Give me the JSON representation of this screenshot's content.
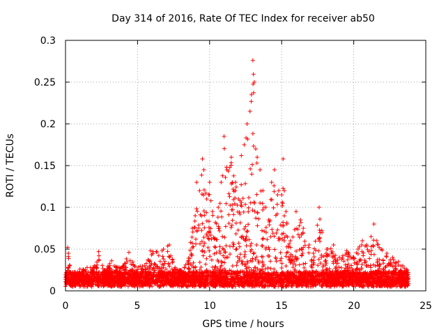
{
  "chart_data": {
    "type": "scatter",
    "title": "Day 314 of 2016, Rate Of TEC Index for receiver ab50",
    "xlabel": "GPS time / hours",
    "ylabel": "ROTI / TECUs",
    "xlim": [
      0,
      25
    ],
    "ylim": [
      0,
      0.3
    ],
    "xticks": [
      0,
      5,
      10,
      15,
      20,
      25
    ],
    "yticks": [
      0,
      0.05,
      0.1,
      0.15,
      0.2,
      0.25,
      0.3
    ],
    "xtick_labels": [
      "0",
      "5",
      "10",
      "15",
      "20",
      "25"
    ],
    "ytick_labels": [
      "0",
      "0.05",
      "0.1",
      "0.15",
      "0.2",
      "0.25",
      "0.3"
    ],
    "grid": true,
    "marker": "+",
    "color": "#ff0000",
    "series": [
      {
        "name": "ROTI",
        "points": [
          [
            0.1,
            0.012
          ],
          [
            0.15,
            0.052
          ],
          [
            0.2,
            0.045
          ],
          [
            0.3,
            0.03
          ],
          [
            0.5,
            0.022
          ],
          [
            1.0,
            0.026
          ],
          [
            1.5,
            0.028
          ],
          [
            2.0,
            0.03
          ],
          [
            2.3,
            0.047
          ],
          [
            2.7,
            0.025
          ],
          [
            3.2,
            0.036
          ],
          [
            3.5,
            0.029
          ],
          [
            4.0,
            0.03
          ],
          [
            4.4,
            0.046
          ],
          [
            4.8,
            0.03
          ],
          [
            5.5,
            0.03
          ],
          [
            5.9,
            0.048
          ],
          [
            6.3,
            0.047
          ],
          [
            6.8,
            0.05
          ],
          [
            7.2,
            0.055
          ],
          [
            7.6,
            0.028
          ],
          [
            8.0,
            0.025
          ],
          [
            8.5,
            0.035
          ],
          [
            8.8,
            0.075
          ],
          [
            9.0,
            0.09
          ],
          [
            9.1,
            0.13
          ],
          [
            9.3,
            0.12
          ],
          [
            9.5,
            0.158
          ],
          [
            9.6,
            0.145
          ],
          [
            9.8,
            0.11
          ],
          [
            10.0,
            0.13
          ],
          [
            10.2,
            0.095
          ],
          [
            10.4,
            0.082
          ],
          [
            10.6,
            0.1
          ],
          [
            10.8,
            0.13
          ],
          [
            11.0,
            0.185
          ],
          [
            11.2,
            0.145
          ],
          [
            11.5,
            0.16
          ],
          [
            11.8,
            0.13
          ],
          [
            12.0,
            0.11
          ],
          [
            12.2,
            0.162
          ],
          [
            12.4,
            0.175
          ],
          [
            12.6,
            0.2
          ],
          [
            12.8,
            0.215
          ],
          [
            12.9,
            0.235
          ],
          [
            13.0,
            0.276
          ],
          [
            13.1,
            0.25
          ],
          [
            13.2,
            0.17
          ],
          [
            13.3,
            0.16
          ],
          [
            13.5,
            0.145
          ],
          [
            13.7,
            0.12
          ],
          [
            13.9,
            0.1
          ],
          [
            14.1,
            0.085
          ],
          [
            14.3,
            0.13
          ],
          [
            14.5,
            0.145
          ],
          [
            14.8,
            0.12
          ],
          [
            15.0,
            0.115
          ],
          [
            15.1,
            0.158
          ],
          [
            15.3,
            0.095
          ],
          [
            15.6,
            0.06
          ],
          [
            16.0,
            0.095
          ],
          [
            16.3,
            0.085
          ],
          [
            16.5,
            0.075
          ],
          [
            16.9,
            0.055
          ],
          [
            17.2,
            0.045
          ],
          [
            17.6,
            0.1
          ],
          [
            17.8,
            0.07
          ],
          [
            18.2,
            0.05
          ],
          [
            18.6,
            0.055
          ],
          [
            19.0,
            0.04
          ],
          [
            19.5,
            0.048
          ],
          [
            20.0,
            0.04
          ],
          [
            20.3,
            0.05
          ],
          [
            20.6,
            0.06
          ],
          [
            20.9,
            0.055
          ],
          [
            21.2,
            0.065
          ],
          [
            21.4,
            0.08
          ],
          [
            21.6,
            0.06
          ],
          [
            21.9,
            0.05
          ],
          [
            22.3,
            0.045
          ],
          [
            22.7,
            0.04
          ],
          [
            23.1,
            0.035
          ],
          [
            23.4,
            0.03
          ],
          [
            23.7,
            0.025
          ]
        ]
      }
    ]
  }
}
